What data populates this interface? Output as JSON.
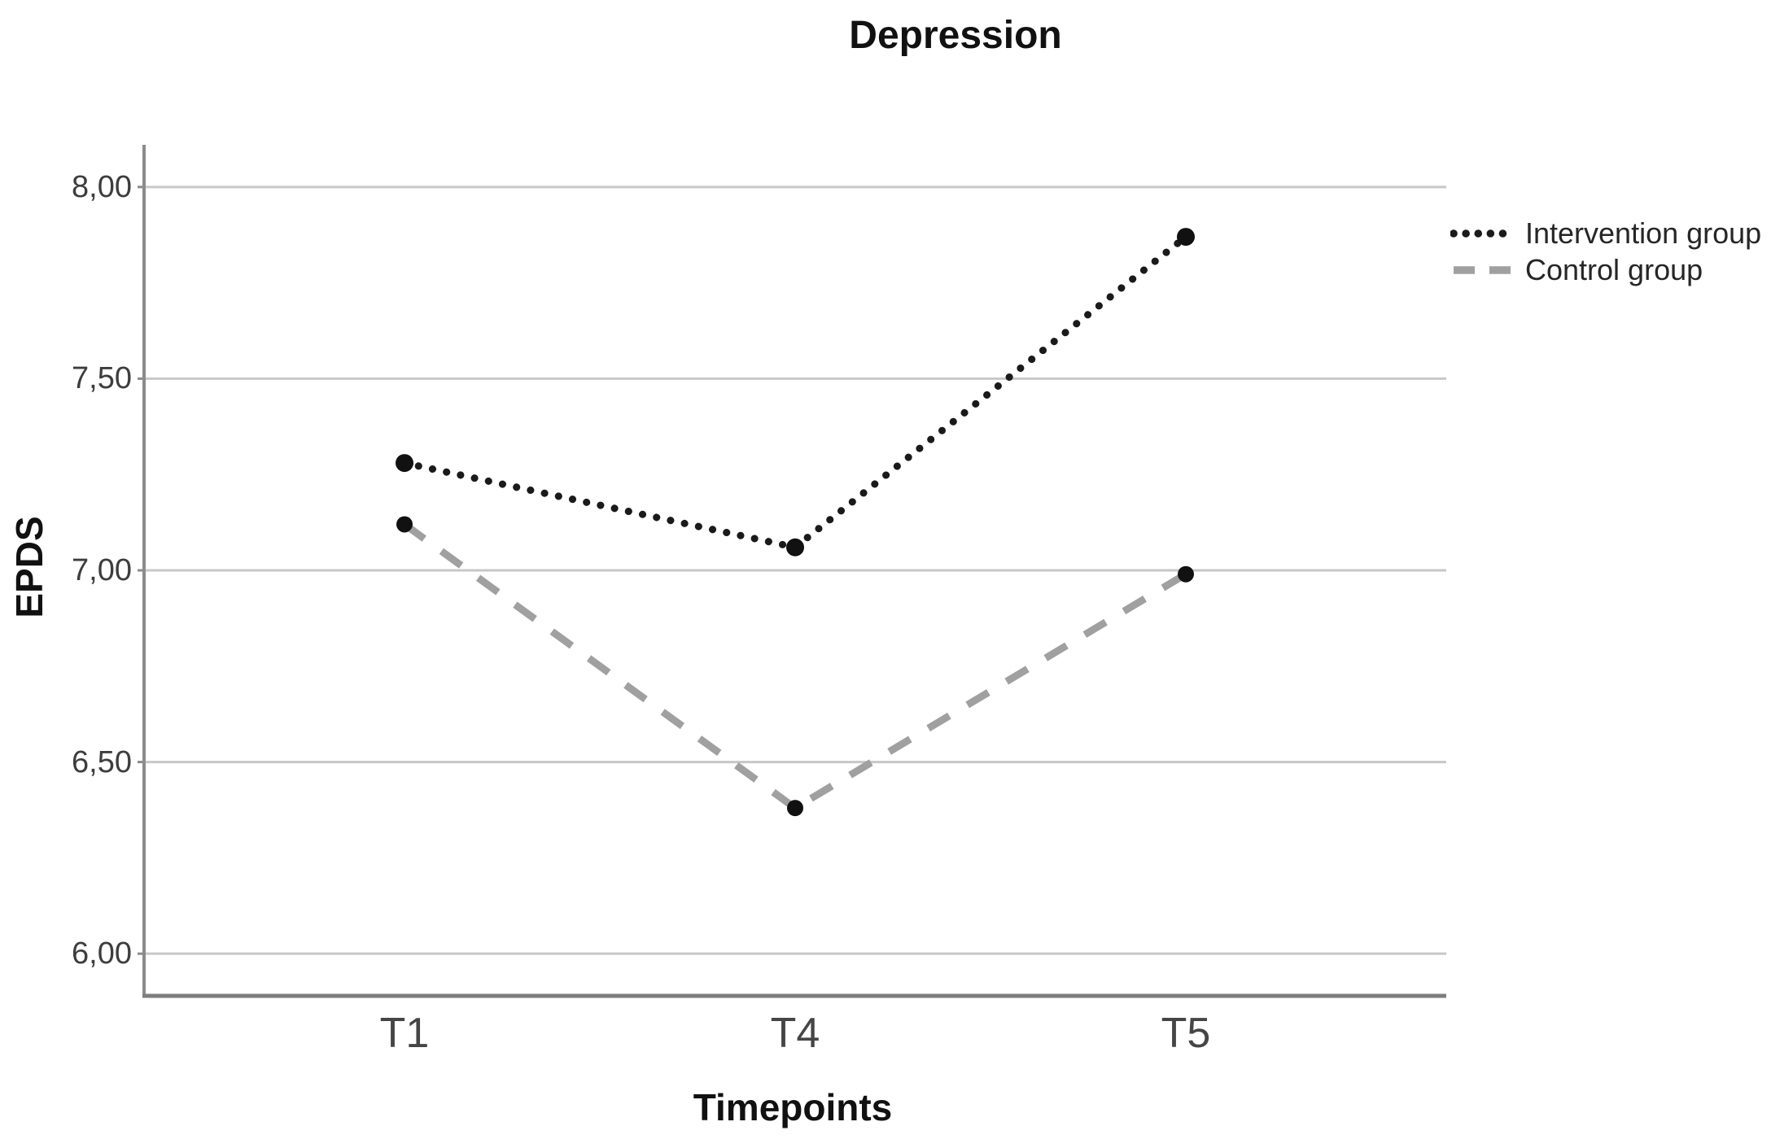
{
  "title": "Depression",
  "colors": {
    "background": "#ffffff",
    "gridline": "#c7c7c7",
    "y_axis": "#8b8b8b",
    "x_axis": "#7d7d7d",
    "title_text": "#111111",
    "tick_text": "#3d3d3d",
    "legend_text": "#262626",
    "intervention": "#1a1a1a",
    "control": "#a0a0a0",
    "marker": "#111111"
  },
  "chart_data": {
    "type": "line",
    "title": "Depression",
    "xlabel": "Timepoints",
    "ylabel": "EPDS",
    "categories": [
      "T1",
      "T4",
      "T5"
    ],
    "series": [
      {
        "name": "Intervention group",
        "values": [
          7.28,
          7.06,
          7.87
        ],
        "style": "dotted",
        "color": "#1a1a1a",
        "marker_radius": 11
      },
      {
        "name": "Control group",
        "values": [
          7.12,
          6.38,
          6.99
        ],
        "style": "dashed",
        "color": "#a0a0a0",
        "marker_radius": 10
      }
    ],
    "yticks": [
      {
        "value": 6.0,
        "label": "6,00"
      },
      {
        "value": 6.5,
        "label": "6,50"
      },
      {
        "value": 7.0,
        "label": "7,00"
      },
      {
        "value": 7.5,
        "label": "7,50"
      },
      {
        "value": 8.0,
        "label": "8,00"
      }
    ],
    "ylim": [
      5.89,
      8.11
    ],
    "grid": true,
    "legend_position": "right",
    "decimal_separator": ",",
    "category_positions": [
      0.2,
      0.5,
      0.8
    ]
  }
}
